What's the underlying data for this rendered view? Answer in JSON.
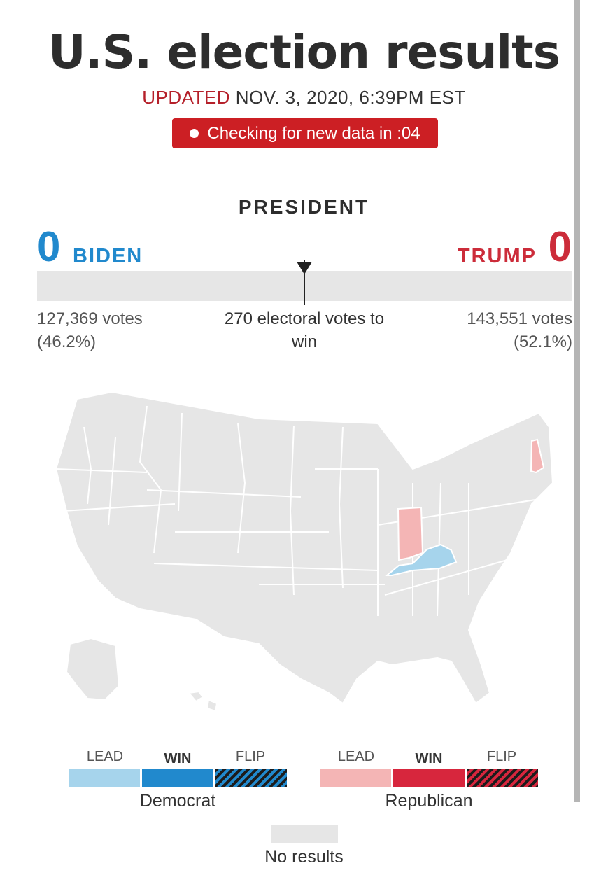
{
  "header": {
    "title": "U.S. election results",
    "updated_label": "UPDATED",
    "updated_time": "NOV. 3, 2020, 6:39PM EST",
    "status_text": "Checking for new data in :04"
  },
  "race": {
    "office": "PRESIDENT",
    "threshold_text": "270 electoral votes to win",
    "candidates": [
      {
        "name": "BIDEN",
        "electoral_votes": "0",
        "votes": "127,369 votes",
        "pct": "(46.2%)",
        "color": "#2189cd"
      },
      {
        "name": "TRUMP",
        "electoral_votes": "0",
        "votes": "143,551 votes",
        "pct": "(52.1%)",
        "color": "#cc2c3a"
      }
    ]
  },
  "map": {
    "states": {
      "kentucky": "dem-lead",
      "indiana": "rep-lead",
      "new_hampshire": "rep-lead",
      "others": "no-results"
    },
    "colors": {
      "no_results": "#e6e6e6",
      "dem_lead": "#a6d4ec",
      "dem_win": "#2189cd",
      "rep_lead": "#f4b5b5",
      "rep_win": "#d7263d"
    }
  },
  "legend": {
    "democrat": {
      "label": "Democrat",
      "lead": "LEAD",
      "win": "WIN",
      "flip": "FLIP"
    },
    "republican": {
      "label": "Republican",
      "lead": "LEAD",
      "win": "WIN",
      "flip": "FLIP"
    },
    "no_results": "No results"
  }
}
